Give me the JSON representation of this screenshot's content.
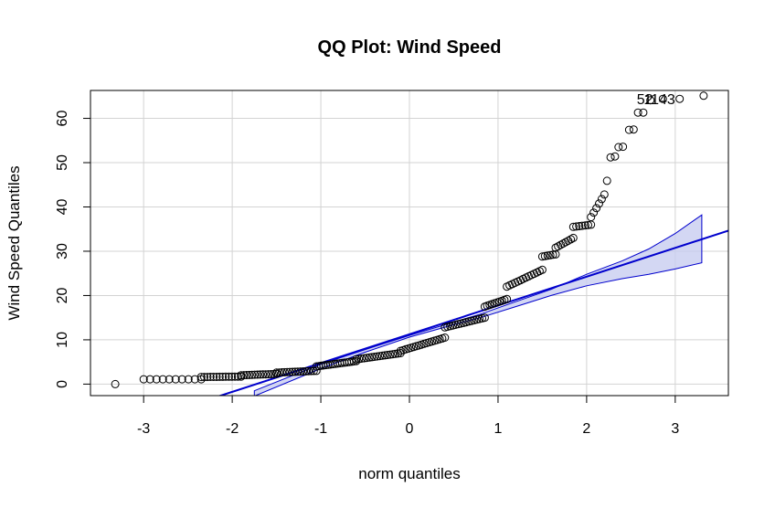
{
  "chart_data": {
    "type": "scatter",
    "title": "QQ Plot: Wind Speed",
    "xlabel": "norm quantiles",
    "ylabel": "Wind Speed Quantiles",
    "xlim": [
      -3.6,
      3.6
    ],
    "ylim": [
      -2.6,
      66.3
    ],
    "xticks": [
      -3,
      -2,
      -1,
      0,
      1,
      2,
      3
    ],
    "yticks": [
      0,
      10,
      20,
      30,
      40,
      50,
      60
    ],
    "grid": true,
    "colors": {
      "points": "#000000",
      "line": "#0000cd",
      "band_fill": "#c8cdf0",
      "band_stroke": "#0000cd",
      "grid": "#d3d3d3"
    },
    "reference_line": {
      "intercept": 11.25,
      "slope": 6.5
    },
    "confidence_band": {
      "x": [
        -1.75,
        -1.0,
        -0.5,
        0.0,
        0.5,
        0.8,
        1.2,
        1.6,
        2.0,
        2.4,
        2.7,
        3.0,
        3.3
      ],
      "lower": [
        -2.7,
        3.5,
        7.2,
        10.6,
        13.4,
        15.0,
        17.5,
        20.0,
        22.2,
        23.8,
        24.8,
        26.0,
        27.4
      ],
      "upper": [
        -1.5,
        4.5,
        7.8,
        11.0,
        14.0,
        15.8,
        18.6,
        21.4,
        24.8,
        27.8,
        30.5,
        34.0,
        38.2
      ]
    },
    "labeled_points": [
      {
        "label": "52",
        "x": 2.75,
        "y": 64.4
      },
      {
        "label": "1143",
        "x": 3.0,
        "y": 64.4
      }
    ],
    "segments": [
      {
        "x0": -3.32,
        "x1": -3.32,
        "y0": 0.0,
        "y1": 0.0,
        "n": 1
      },
      {
        "x0": -3.0,
        "x1": -2.35,
        "y0": 1.1,
        "y1": 1.1,
        "n": 10
      },
      {
        "x0": -2.35,
        "x1": -1.9,
        "y0": 1.6,
        "y1": 1.7,
        "n": 14
      },
      {
        "x0": -1.9,
        "x1": -1.5,
        "y0": 2.0,
        "y1": 2.3,
        "n": 14
      },
      {
        "x0": -1.5,
        "x1": -1.05,
        "y0": 2.6,
        "y1": 3.0,
        "n": 16
      },
      {
        "x0": -1.05,
        "x1": -0.6,
        "y0": 4.0,
        "y1": 5.2,
        "n": 18
      },
      {
        "x0": -0.6,
        "x1": -0.1,
        "y0": 5.6,
        "y1": 7.0,
        "n": 18
      },
      {
        "x0": -0.1,
        "x1": 0.4,
        "y0": 7.5,
        "y1": 10.5,
        "n": 18
      },
      {
        "x0": 0.4,
        "x1": 0.85,
        "y0": 12.8,
        "y1": 15.0,
        "n": 16
      },
      {
        "x0": 0.85,
        "x1": 1.1,
        "y0": 17.5,
        "y1": 19.2,
        "n": 10
      },
      {
        "x0": 1.1,
        "x1": 1.5,
        "y0": 22.0,
        "y1": 25.8,
        "n": 14
      },
      {
        "x0": 1.5,
        "x1": 1.65,
        "y0": 28.8,
        "y1": 29.3,
        "n": 6
      },
      {
        "x0": 1.65,
        "x1": 1.85,
        "y0": 30.8,
        "y1": 33.0,
        "n": 8
      },
      {
        "x0": 1.85,
        "x1": 2.05,
        "y0": 35.5,
        "y1": 36.0,
        "n": 7
      },
      {
        "x0": 2.05,
        "x1": 2.2,
        "y0": 37.7,
        "y1": 42.8,
        "n": 6
      }
    ],
    "tail_points": [
      [
        2.23,
        45.9
      ],
      [
        2.27,
        51.2
      ],
      [
        2.32,
        51.4
      ],
      [
        2.36,
        53.5
      ],
      [
        2.41,
        53.6
      ],
      [
        2.48,
        57.4
      ],
      [
        2.53,
        57.5
      ],
      [
        2.58,
        61.3
      ],
      [
        2.64,
        61.3
      ],
      [
        2.72,
        64.1
      ],
      [
        2.86,
        64.4
      ],
      [
        3.05,
        64.4
      ],
      [
        3.32,
        65.1
      ]
    ]
  }
}
